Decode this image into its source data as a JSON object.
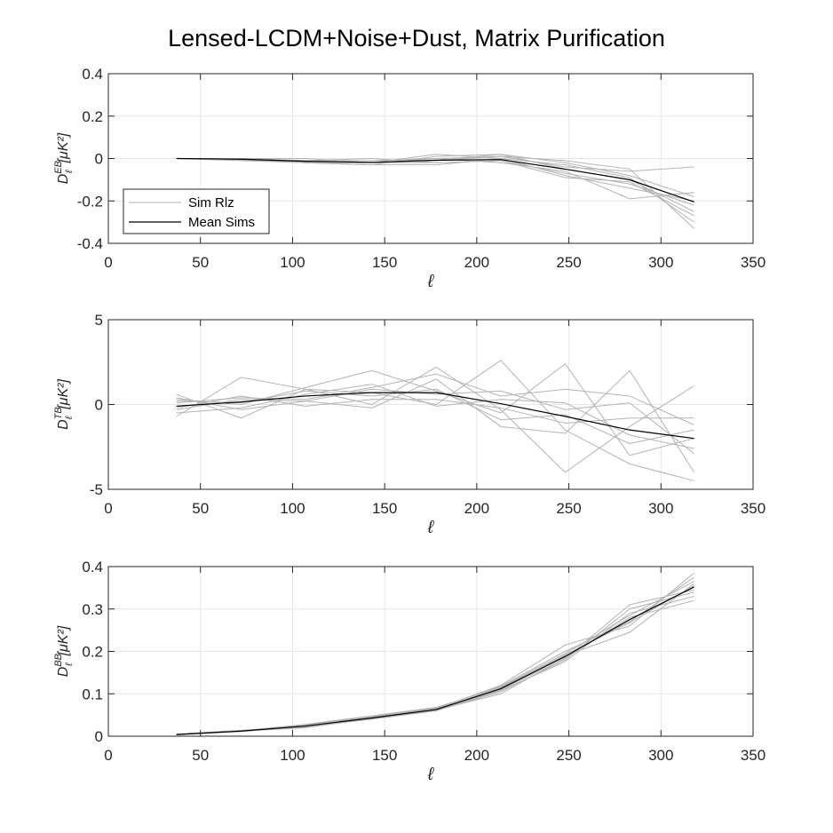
{
  "figure_title": "Lensed-LCDM+Noise+Dust, Matrix Purification",
  "legend": {
    "entries": [
      "Sim Rlz",
      "Mean Sims"
    ]
  },
  "colors": {
    "sim": "#b3b3b3",
    "mean": "#000000",
    "grid": "#e6e6e6",
    "axis": "#262626"
  },
  "chart_data": [
    {
      "type": "line",
      "xlabel": "ℓ",
      "ylabel": {
        "main": "D",
        "sub": "ℓ",
        "sup": "EB",
        "unit": "[μK²]"
      },
      "xlim": [
        0,
        350
      ],
      "ylim": [
        -0.4,
        0.4
      ],
      "xticks": [
        0,
        50,
        100,
        150,
        200,
        250,
        300,
        350
      ],
      "yticks": [
        -0.4,
        -0.2,
        0,
        0.2,
        0.4
      ],
      "ytick_labels": [
        "-0.4",
        "-0.2",
        "0",
        "0.2",
        "0.4"
      ],
      "grid": true,
      "legend_position": "bottom-left",
      "x": [
        37,
        72,
        107,
        143,
        178,
        213,
        248,
        283,
        318
      ],
      "series": [
        {
          "name": "Mean Sims",
          "values": [
            0,
            -0.003,
            -0.013,
            -0.018,
            -0.008,
            -0.005,
            -0.05,
            -0.1,
            -0.205
          ]
        },
        {
          "values": [
            0,
            0,
            -0.01,
            -0.02,
            0,
            0.01,
            -0.04,
            -0.06,
            -0.04
          ]
        },
        {
          "values": [
            0,
            -0.005,
            -0.02,
            -0.03,
            0.01,
            0.02,
            -0.02,
            -0.08,
            -0.18
          ]
        },
        {
          "values": [
            0,
            0,
            -0.01,
            0,
            -0.02,
            -0.01,
            -0.07,
            -0.12,
            -0.22
          ]
        },
        {
          "values": [
            0,
            -0.005,
            -0.02,
            -0.02,
            -0.01,
            0.02,
            -0.05,
            -0.1,
            -0.25
          ]
        },
        {
          "values": [
            0,
            0,
            0,
            -0.02,
            0.02,
            0,
            -0.03,
            -0.09,
            -0.3
          ]
        },
        {
          "values": [
            0,
            -0.01,
            -0.02,
            -0.03,
            -0.03,
            0,
            -0.08,
            -0.14,
            -0.2
          ]
        },
        {
          "values": [
            0,
            -0.005,
            -0.01,
            -0.01,
            0,
            -0.02,
            -0.06,
            -0.19,
            -0.16
          ]
        },
        {
          "values": [
            0,
            0,
            -0.02,
            -0.02,
            -0.01,
            0.01,
            -0.01,
            -0.05,
            -0.33
          ]
        },
        {
          "values": [
            0,
            -0.005,
            -0.015,
            -0.02,
            -0.02,
            -0.01,
            -0.09,
            -0.11,
            -0.27
          ]
        }
      ]
    },
    {
      "type": "line",
      "xlabel": "ℓ",
      "ylabel": {
        "main": "D",
        "sub": "ℓ",
        "sup": "TB",
        "unit": "[μK²]"
      },
      "xlim": [
        0,
        350
      ],
      "ylim": [
        -5,
        5
      ],
      "xticks": [
        0,
        50,
        100,
        150,
        200,
        250,
        300,
        350
      ],
      "yticks": [
        -5,
        0,
        5
      ],
      "ytick_labels": [
        "-5",
        "0",
        "5"
      ],
      "grid": true,
      "x": [
        37,
        72,
        107,
        143,
        178,
        213,
        248,
        283,
        318
      ],
      "series": [
        {
          "name": "Mean Sims",
          "values": [
            -0.1,
            0.15,
            0.5,
            0.7,
            0.7,
            0.05,
            -0.7,
            -1.5,
            -2.0
          ]
        },
        {
          "values": [
            0.6,
            -0.8,
            0.9,
            0.0,
            2.2,
            -0.3,
            -4.0,
            -1.3,
            1.1
          ]
        },
        {
          "values": [
            -0.7,
            1.6,
            0.9,
            0.7,
            0.0,
            2.6,
            -1.5,
            -3.5,
            -4.5
          ]
        },
        {
          "values": [
            0.3,
            0.0,
            1.0,
            2.0,
            0.8,
            -0.5,
            2.4,
            -3.0,
            -2.0
          ]
        },
        {
          "values": [
            -0.3,
            0.3,
            0.2,
            -0.2,
            1.5,
            -1.3,
            -1.7,
            2.0,
            -4.0
          ]
        },
        {
          "values": [
            0.1,
            0.4,
            0.3,
            1.0,
            1.8,
            0.5,
            0.9,
            0.5,
            -1.2
          ]
        },
        {
          "values": [
            -0.5,
            -0.2,
            0.6,
            1.2,
            -0.1,
            0.3,
            0.1,
            -1.8,
            -2.6
          ]
        },
        {
          "values": [
            0.2,
            0.1,
            0.8,
            0.5,
            0.9,
            -0.9,
            -0.6,
            -2.3,
            -1.5
          ]
        },
        {
          "values": [
            -0.2,
            0.5,
            -0.1,
            0.3,
            0.3,
            -0.2,
            -1.1,
            -0.8,
            -0.8
          ]
        },
        {
          "values": [
            0.4,
            -0.3,
            0.2,
            0.9,
            0.6,
            0.8,
            -0.3,
            0.1,
            -2.9
          ]
        }
      ]
    },
    {
      "type": "line",
      "xlabel": "ℓ",
      "ylabel": {
        "main": "D",
        "sub": "ℓ",
        "sup": "BB",
        "unit": "[μK²]"
      },
      "xlim": [
        0,
        350
      ],
      "ylim": [
        0,
        0.4
      ],
      "xticks": [
        0,
        50,
        100,
        150,
        200,
        250,
        300,
        350
      ],
      "yticks": [
        0,
        0.1,
        0.2,
        0.3,
        0.4
      ],
      "ytick_labels": [
        "0",
        "0.1",
        "0.2",
        "0.3",
        "0.4"
      ],
      "grid": true,
      "x": [
        37,
        72,
        107,
        143,
        178,
        213,
        248,
        283,
        318
      ],
      "series": [
        {
          "name": "Mean Sims",
          "values": [
            0.004,
            0.012,
            0.024,
            0.043,
            0.063,
            0.112,
            0.188,
            0.275,
            0.352
          ]
        },
        {
          "values": [
            0.004,
            0.011,
            0.026,
            0.045,
            0.065,
            0.12,
            0.215,
            0.26,
            0.385
          ]
        },
        {
          "values": [
            0.005,
            0.013,
            0.022,
            0.04,
            0.06,
            0.105,
            0.18,
            0.3,
            0.34
          ]
        },
        {
          "values": [
            0.004,
            0.012,
            0.028,
            0.048,
            0.068,
            0.115,
            0.19,
            0.245,
            0.36
          ]
        },
        {
          "values": [
            0.003,
            0.012,
            0.02,
            0.042,
            0.062,
            0.1,
            0.185,
            0.28,
            0.32
          ]
        },
        {
          "values": [
            0.005,
            0.014,
            0.025,
            0.046,
            0.066,
            0.118,
            0.2,
            0.27,
            0.375
          ]
        },
        {
          "values": [
            0.004,
            0.011,
            0.023,
            0.041,
            0.06,
            0.108,
            0.176,
            0.29,
            0.33
          ]
        },
        {
          "values": [
            0.004,
            0.012,
            0.024,
            0.044,
            0.064,
            0.113,
            0.192,
            0.268,
            0.355
          ]
        },
        {
          "values": [
            0.005,
            0.013,
            0.021,
            0.043,
            0.061,
            0.11,
            0.183,
            0.31,
            0.345
          ]
        },
        {
          "values": [
            0.004,
            0.012,
            0.027,
            0.047,
            0.067,
            0.116,
            0.195,
            0.285,
            0.365
          ]
        }
      ]
    }
  ]
}
